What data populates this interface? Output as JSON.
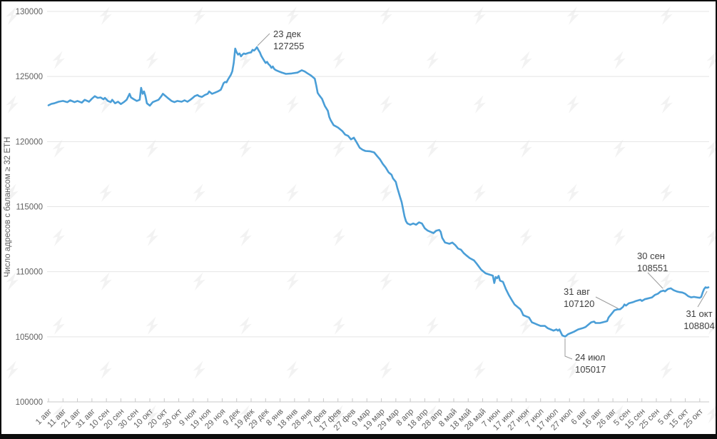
{
  "watermark": {
    "icon": "forklog-logo-icon",
    "color": "#f2f2f2"
  },
  "chart_data": {
    "type": "line",
    "title": "",
    "xlabel": "",
    "ylabel": "Число адресов с балансом ≥ 32 ETH",
    "ylim": [
      100000,
      130000
    ],
    "grid": "horizontal",
    "legend": "none",
    "y_ticks": [
      "130000",
      "125000",
      "120000",
      "115000",
      "110000",
      "105000",
      "100000"
    ],
    "y_tick_values": [
      130000,
      125000,
      120000,
      115000,
      110000,
      105000,
      100000
    ],
    "x_tick_interval_days": 10,
    "x_tick_labels": [
      "1 авг",
      "11 авг",
      "21 авг",
      "31 авг",
      "10 сен",
      "20 сен",
      "30 сен",
      "10 окт",
      "20 окт",
      "30 окт",
      "9 ноя",
      "19 ноя",
      "29 ноя",
      "9 дек",
      "19 дек",
      "29 дек",
      "8 янв",
      "18 янв",
      "28 янв",
      "7 фев",
      "17 фев",
      "27 фев",
      "9 мар",
      "19 мар",
      "29 мар",
      "8 апр",
      "18 апр",
      "28 апр",
      "8 май",
      "18 май",
      "28 май",
      "7 июн",
      "17 июн",
      "27 июн",
      "7 июл",
      "17 июл",
      "27 июл",
      "6 авг",
      "16 авг",
      "26 авг",
      "5 сен",
      "15 сен",
      "25 сен",
      "5 окт",
      "15 окт",
      "25 окт"
    ],
    "series": [
      {
        "name": "Число адресов с балансом ≥ 32 ETH",
        "color": "#4a9ed7",
        "points": [
          [
            0,
            122790
          ],
          [
            2,
            122900
          ],
          [
            4,
            122940
          ],
          [
            7,
            123060
          ],
          [
            10,
            123120
          ],
          [
            13,
            123030
          ],
          [
            15,
            123170
          ],
          [
            18,
            123030
          ],
          [
            20,
            123120
          ],
          [
            23,
            122990
          ],
          [
            25,
            123210
          ],
          [
            28,
            123060
          ],
          [
            30,
            123300
          ],
          [
            32,
            123490
          ],
          [
            34,
            123360
          ],
          [
            36,
            123390
          ],
          [
            38,
            123250
          ],
          [
            39,
            123360
          ],
          [
            41,
            123120
          ],
          [
            43,
            123030
          ],
          [
            44,
            123210
          ],
          [
            46,
            122940
          ],
          [
            48,
            123060
          ],
          [
            50,
            122880
          ],
          [
            52,
            123030
          ],
          [
            54,
            123210
          ],
          [
            56,
            123670
          ],
          [
            57,
            123390
          ],
          [
            59,
            123250
          ],
          [
            61,
            123120
          ],
          [
            63,
            123210
          ],
          [
            64,
            124130
          ],
          [
            65,
            123670
          ],
          [
            66,
            123850
          ],
          [
            67,
            123490
          ],
          [
            68,
            122940
          ],
          [
            70,
            122760
          ],
          [
            72,
            123030
          ],
          [
            74,
            123120
          ],
          [
            76,
            123210
          ],
          [
            78,
            123490
          ],
          [
            79,
            123670
          ],
          [
            81,
            123490
          ],
          [
            83,
            123300
          ],
          [
            85,
            123120
          ],
          [
            87,
            123030
          ],
          [
            89,
            123120
          ],
          [
            92,
            123060
          ],
          [
            94,
            123170
          ],
          [
            96,
            123060
          ],
          [
            98,
            123210
          ],
          [
            100,
            123390
          ],
          [
            101,
            123490
          ],
          [
            103,
            123580
          ],
          [
            104,
            123490
          ],
          [
            106,
            123430
          ],
          [
            108,
            123580
          ],
          [
            110,
            123670
          ],
          [
            111,
            123850
          ],
          [
            113,
            123670
          ],
          [
            115,
            123760
          ],
          [
            117,
            123850
          ],
          [
            119,
            123980
          ],
          [
            120,
            124220
          ],
          [
            121,
            124490
          ],
          [
            122,
            124580
          ],
          [
            123,
            124550
          ],
          [
            124,
            124760
          ],
          [
            125,
            124950
          ],
          [
            126,
            125130
          ],
          [
            127,
            125400
          ],
          [
            128,
            126040
          ],
          [
            129,
            127140
          ],
          [
            130,
            126860
          ],
          [
            131,
            126680
          ],
          [
            132,
            126770
          ],
          [
            133,
            126550
          ],
          [
            134,
            126680
          ],
          [
            135,
            126770
          ],
          [
            136,
            126730
          ],
          [
            138,
            126810
          ],
          [
            140,
            126860
          ],
          [
            141,
            127050
          ],
          [
            142,
            126990
          ],
          [
            143,
            127100
          ],
          [
            144,
            127255
          ],
          [
            145,
            127045
          ],
          [
            146,
            126860
          ],
          [
            147,
            126590
          ],
          [
            148,
            126400
          ],
          [
            149,
            126220
          ],
          [
            150,
            126040
          ],
          [
            151,
            126130
          ],
          [
            152,
            125950
          ],
          [
            153,
            125850
          ],
          [
            154,
            125670
          ],
          [
            155,
            125770
          ],
          [
            156,
            125580
          ],
          [
            157,
            125490
          ],
          [
            159,
            125400
          ],
          [
            161,
            125310
          ],
          [
            164,
            125200
          ],
          [
            168,
            125235
          ],
          [
            172,
            125300
          ],
          [
            175,
            125480
          ],
          [
            177,
            125385
          ],
          [
            179,
            125240
          ],
          [
            181,
            125100
          ],
          [
            182,
            125017
          ],
          [
            184,
            124835
          ],
          [
            185,
            124300
          ],
          [
            186,
            123736
          ],
          [
            187,
            123571
          ],
          [
            189,
            123280
          ],
          [
            191,
            122730
          ],
          [
            193,
            122363
          ],
          [
            194,
            121900
          ],
          [
            195,
            121631
          ],
          [
            197,
            121264
          ],
          [
            200,
            121082
          ],
          [
            203,
            120807
          ],
          [
            205,
            120533
          ],
          [
            207,
            120441
          ],
          [
            209,
            120167
          ],
          [
            211,
            120300
          ],
          [
            213,
            119920
          ],
          [
            215,
            119530
          ],
          [
            217,
            119371
          ],
          [
            219,
            119280
          ],
          [
            222,
            119258
          ],
          [
            225,
            119167
          ],
          [
            227,
            118895
          ],
          [
            229,
            118642
          ],
          [
            231,
            118277
          ],
          [
            233,
            118003
          ],
          [
            235,
            117635
          ],
          [
            237,
            117453
          ],
          [
            238,
            117178
          ],
          [
            240,
            116904
          ],
          [
            241,
            116448
          ],
          [
            242,
            116081
          ],
          [
            243,
            115713
          ],
          [
            244,
            115349
          ],
          [
            245,
            114800
          ],
          [
            246,
            114252
          ],
          [
            247,
            113886
          ],
          [
            248,
            113703
          ],
          [
            250,
            113612
          ],
          [
            252,
            113703
          ],
          [
            254,
            113612
          ],
          [
            256,
            113795
          ],
          [
            258,
            113703
          ],
          [
            260,
            113336
          ],
          [
            262,
            113155
          ],
          [
            264,
            113063
          ],
          [
            266,
            112970
          ],
          [
            268,
            113155
          ],
          [
            270,
            113210
          ],
          [
            271,
            113063
          ],
          [
            272,
            112605
          ],
          [
            274,
            112240
          ],
          [
            277,
            112148
          ],
          [
            279,
            112240
          ],
          [
            281,
            112057
          ],
          [
            283,
            111783
          ],
          [
            285,
            111692
          ],
          [
            287,
            111417
          ],
          [
            289,
            111234
          ],
          [
            291,
            111051
          ],
          [
            294,
            110868
          ],
          [
            296,
            110600
          ],
          [
            299,
            110150
          ],
          [
            302,
            109880
          ],
          [
            305,
            109770
          ],
          [
            307,
            109700
          ],
          [
            308,
            109131
          ],
          [
            309,
            109591
          ],
          [
            310,
            109500
          ],
          [
            311,
            109679
          ],
          [
            312,
            109314
          ],
          [
            314,
            109223
          ],
          [
            316,
            108674
          ],
          [
            318,
            108219
          ],
          [
            320,
            107851
          ],
          [
            322,
            107484
          ],
          [
            324,
            107300
          ],
          [
            326,
            107121
          ],
          [
            327,
            106935
          ],
          [
            328,
            106661
          ],
          [
            330,
            106573
          ],
          [
            332,
            106481
          ],
          [
            334,
            106114
          ],
          [
            336,
            106022
          ],
          [
            338,
            105931
          ],
          [
            340,
            105838
          ],
          [
            343,
            105838
          ],
          [
            345,
            105658
          ],
          [
            347,
            105564
          ],
          [
            349,
            105474
          ],
          [
            351,
            105564
          ],
          [
            352,
            105474
          ],
          [
            353,
            105564
          ],
          [
            355,
            105110
          ],
          [
            357,
            105017
          ],
          [
            359,
            105200
          ],
          [
            361,
            105292
          ],
          [
            363,
            105383
          ],
          [
            366,
            105565
          ],
          [
            369,
            105658
          ],
          [
            371,
            105750
          ],
          [
            373,
            105931
          ],
          [
            375,
            106114
          ],
          [
            377,
            106170
          ],
          [
            378,
            106060
          ],
          [
            381,
            106060
          ],
          [
            383,
            106114
          ],
          [
            386,
            106205
          ],
          [
            387,
            106481
          ],
          [
            389,
            106755
          ],
          [
            391,
            107029
          ],
          [
            393,
            107100
          ],
          [
            395,
            107120
          ],
          [
            397,
            107302
          ],
          [
            398,
            107484
          ],
          [
            399,
            107397
          ],
          [
            401,
            107576
          ],
          [
            404,
            107668
          ],
          [
            406,
            107756
          ],
          [
            409,
            107851
          ],
          [
            410,
            107756
          ],
          [
            412,
            107888
          ],
          [
            414,
            107942
          ],
          [
            417,
            108030
          ],
          [
            419,
            108216
          ],
          [
            421,
            108303
          ],
          [
            423,
            108490
          ],
          [
            425,
            108551
          ],
          [
            426,
            108490
          ],
          [
            428,
            108673
          ],
          [
            430,
            108728
          ],
          [
            432,
            108577
          ],
          [
            434,
            108490
          ],
          [
            436,
            108435
          ],
          [
            438,
            108400
          ],
          [
            440,
            108303
          ],
          [
            442,
            108125
          ],
          [
            444,
            108030
          ],
          [
            446,
            108070
          ],
          [
            448,
            108030
          ],
          [
            450,
            107997
          ],
          [
            451,
            108070
          ],
          [
            452,
            108400
          ],
          [
            453,
            108673
          ],
          [
            454,
            108800
          ],
          [
            455,
            108766
          ],
          [
            456,
            108804
          ]
        ]
      }
    ],
    "annotations": [
      {
        "date": "23 дек",
        "value": "127255",
        "day": 144,
        "point_value": 127255,
        "text_x": 383,
        "text_y": 52,
        "align": "start",
        "leader": [
          [
            361,
            64
          ],
          [
            378,
            47
          ]
        ]
      },
      {
        "date": "30 сен",
        "value": "108551",
        "day": 425,
        "point_value": 108551,
        "text_x": 893,
        "text_y": 363,
        "align": "start",
        "leader": [
          [
            929,
            404
          ],
          [
            908,
            382
          ]
        ]
      },
      {
        "date": "31 авг",
        "value": "107120",
        "day": 395,
        "point_value": 107120,
        "text_x": 790,
        "text_y": 413,
        "align": "start",
        "leader": [
          [
            866,
            432
          ],
          [
            835,
            416
          ]
        ]
      },
      {
        "date": "24 июл",
        "value": "105017",
        "day": 357,
        "point_value": 105017,
        "text_x": 806,
        "text_y": 505,
        "align": "start",
        "leader": [
          [
            792,
            474
          ],
          [
            792,
            499
          ],
          [
            802,
            503
          ]
        ]
      },
      {
        "date": "31 окт",
        "value": "108804",
        "day": 456,
        "point_value": 108804,
        "text_x": 980,
        "text_y": 444,
        "align": "middle",
        "leader": [
          [
            991,
            408
          ],
          [
            978,
            430
          ]
        ]
      }
    ]
  }
}
